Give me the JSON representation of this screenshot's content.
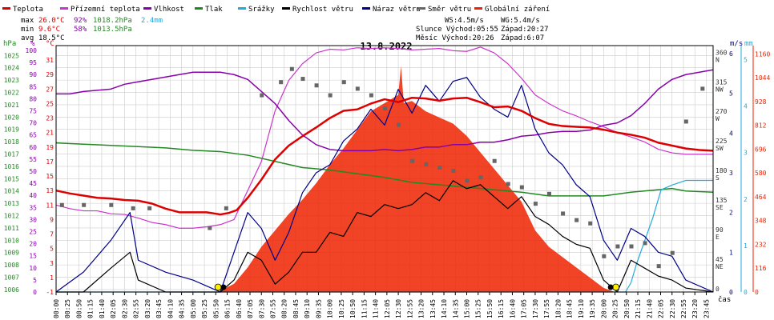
{
  "legend": [
    {
      "label": "Teplota",
      "color": "#dd0000"
    },
    {
      "label": "Přízemní teplota",
      "color": "#cc33cc"
    },
    {
      "label": "Vlhkost",
      "color": "#8800aa"
    },
    {
      "label": "Tlak",
      "color": "#228822"
    },
    {
      "label": "Srážky",
      "color": "#22aadd"
    },
    {
      "label": "Rychlost větru",
      "color": "#000000"
    },
    {
      "label": "Náraz větru",
      "color": "#000088"
    },
    {
      "label": "Směr větru",
      "color": "#666666"
    },
    {
      "label": "Globální záření",
      "color": "#ee2200"
    }
  ],
  "stats": {
    "max_label": "max",
    "min_label": "min",
    "avg_label": "avg",
    "max_temp": "26.0°C",
    "max_hum": "92%",
    "max_press": "1018.2hPa",
    "max_rain": "2.4mm",
    "min_temp": "9.6°C",
    "min_hum": "58%",
    "min_press": "1013.5hPa",
    "avg_temp": "18.5°C"
  },
  "wind_info": {
    "ws": "WS:4.5m/s",
    "wg": "WG:5.4m/s"
  },
  "sun_info": {
    "rise": "Slunce Východ:05:55",
    "set": "Západ:20:27"
  },
  "moon_info": {
    "rise": "Měsíc  Východ:20:26",
    "set": "Západ:6:07"
  },
  "title": "13.8.2022",
  "axes": {
    "hpa_label": "hPa",
    "pct_label": "%",
    "temp_label": "°C",
    "ms_label": "m/s",
    "mm_label": "mm",
    "time_label": "čas",
    "hpa_ticks": [
      "1025",
      "1024",
      "1023",
      "1022",
      "1021",
      "1020",
      "1019",
      "1018",
      "1017",
      "1016",
      "1015",
      "1014",
      "1013",
      "1012",
      "1011",
      "1010",
      "1009",
      "1008",
      "1007",
      "1006"
    ],
    "pct_ticks": [
      "100",
      "95",
      "90",
      "85",
      "80",
      "75",
      "70",
      "65",
      "60",
      "55",
      "50",
      "45",
      "40",
      "35",
      "30",
      "25",
      "20",
      "15",
      "10",
      "5",
      "0"
    ],
    "temp_ticks": [
      "31",
      "29",
      "27",
      "25",
      "23",
      "21",
      "19",
      "17",
      "15",
      "13",
      "11",
      "9",
      "7",
      "5",
      "3",
      "1",
      "-1"
    ],
    "dir_ticks": [
      {
        "deg": "360",
        "dir": "N"
      },
      {
        "deg": "315",
        "dir": "NW"
      },
      {
        "deg": "270",
        "dir": "W"
      },
      {
        "deg": "225",
        "dir": "SW"
      },
      {
        "deg": "180",
        "dir": "S"
      },
      {
        "deg": "135",
        "dir": "SE"
      },
      {
        "deg": "90",
        "dir": "E"
      },
      {
        "deg": "45",
        "dir": "NE"
      },
      {
        "deg": "0",
        "dir": ""
      }
    ],
    "ms_ticks": [
      "6",
      "5",
      "4",
      "3",
      "2",
      "1",
      "0"
    ],
    "mm_ticks": [
      "5",
      "4",
      "3",
      "2",
      "1",
      "0"
    ],
    "rad_ticks": [
      "1160",
      "1044",
      "928",
      "812",
      "696",
      "580",
      "464",
      "348",
      "232",
      "116",
      "0"
    ],
    "time_ticks": [
      "00:00",
      "00:25",
      "00:50",
      "01:15",
      "01:40",
      "02:05",
      "02:30",
      "02:55",
      "03:20",
      "03:45",
      "04:10",
      "04:35",
      "05:00",
      "05:25",
      "05:50",
      "06:15",
      "06:40",
      "07:05",
      "07:30",
      "07:55",
      "08:20",
      "08:45",
      "09:10",
      "09:35",
      "10:00",
      "10:25",
      "10:50",
      "11:15",
      "11:40",
      "12:05",
      "12:30",
      "12:55",
      "13:20",
      "13:45",
      "14:10",
      "14:35",
      "15:00",
      "15:25",
      "15:50",
      "16:15",
      "16:40",
      "17:05",
      "17:30",
      "17:55",
      "18:20",
      "18:45",
      "19:10",
      "19:35",
      "20:00",
      "20:25",
      "20:50",
      "21:15",
      "21:40",
      "22:05",
      "22:30",
      "22:55",
      "23:20",
      "23:45"
    ]
  },
  "colors": {
    "temperature": "#dd0000",
    "ground_temp": "#cc33cc",
    "humidity": "#8800aa",
    "pressure": "#228822",
    "rain": "#22aadd",
    "wind_speed": "#000000",
    "wind_gust": "#000088",
    "wind_dir": "#666666",
    "radiation": "#ee2200",
    "grid": "#cccccc"
  },
  "chart_data": {
    "type": "line",
    "title": "13.8.2022",
    "x_unit": "hours",
    "xlim": [
      0,
      24
    ],
    "series": [
      {
        "name": "Teplota",
        "axis": "°C",
        "ylim": [
          -1,
          33
        ],
        "x": [
          0,
          0.5,
          1,
          1.5,
          2,
          2.5,
          3,
          3.5,
          4,
          4.5,
          5,
          5.5,
          6,
          6.3,
          6.6,
          7,
          7.5,
          8,
          8.5,
          9,
          9.5,
          10,
          10.5,
          11,
          11.5,
          12,
          12.5,
          13,
          13.5,
          14,
          14.5,
          15,
          15.5,
          16,
          16.5,
          17,
          17.5,
          18,
          18.5,
          19,
          19.5,
          20,
          20.5,
          21,
          21.5,
          22,
          22.5,
          23,
          23.5,
          24
        ],
        "y": [
          13,
          12.6,
          12.3,
          12,
          11.9,
          11.7,
          11.6,
          11.2,
          10.5,
          10,
          10,
          10,
          9.7,
          9.9,
          10.3,
          12,
          14.5,
          17.3,
          19.2,
          20.5,
          21.7,
          23,
          24,
          24.2,
          25,
          25.6,
          25.2,
          25.8,
          25.7,
          25.4,
          25.7,
          25.8,
          25.2,
          24.5,
          24.6,
          24,
          23,
          22.2,
          21.9,
          21.8,
          21.7,
          21.4,
          21,
          20.7,
          20.3,
          19.6,
          19.2,
          18.8,
          18.6,
          18.5
        ]
      },
      {
        "name": "Přízemní teplota",
        "axis": "°C",
        "ylim": [
          -1,
          33
        ],
        "x": [
          0,
          0.5,
          1,
          1.5,
          2,
          2.5,
          3,
          3.5,
          4,
          4.5,
          5,
          5.5,
          6,
          6.5,
          7,
          7.5,
          8,
          8.5,
          9,
          9.5,
          10,
          10.5,
          11,
          11.5,
          12,
          12.5,
          13,
          13.5,
          14,
          14.5,
          15,
          15.5,
          16,
          16.5,
          17,
          17.5,
          18,
          18.5,
          19,
          19.5,
          20,
          20.5,
          21,
          21.5,
          22,
          22.5,
          23,
          23.5,
          24
        ],
        "y": [
          11,
          10.5,
          10.2,
          10.2,
          9.8,
          9.7,
          9.2,
          8.6,
          8.3,
          7.8,
          7.8,
          8,
          8.3,
          9,
          13,
          17,
          24,
          28.2,
          30.5,
          32,
          32.5,
          32.4,
          32.7,
          32.6,
          32.7,
          32.6,
          32.4,
          32.5,
          32.6,
          32.3,
          32.2,
          32.8,
          32,
          30.5,
          28.5,
          26.2,
          25,
          24,
          23.3,
          22.5,
          21.8,
          21,
          20.4,
          19.7,
          18.7,
          18.2,
          18,
          18,
          18
        ]
      },
      {
        "name": "Vlhkost",
        "axis": "%",
        "ylim": [
          0,
          102
        ],
        "x": [
          0,
          0.5,
          1,
          1.5,
          2,
          2.5,
          3,
          3.5,
          4,
          4.5,
          5,
          5.5,
          6,
          6.5,
          7,
          7.5,
          8,
          8.5,
          9,
          9.5,
          10,
          10.5,
          11,
          11.5,
          12,
          12.5,
          13,
          13.5,
          14,
          14.5,
          15,
          15.5,
          16,
          16.5,
          17,
          17.5,
          18,
          18.5,
          19,
          19.5,
          20,
          20.5,
          21,
          21.5,
          22,
          22.5,
          23,
          23.5,
          24
        ],
        "y": [
          82,
          82,
          83,
          83.5,
          84,
          86,
          87,
          88,
          89,
          90,
          91,
          91,
          91,
          90,
          88,
          83,
          78,
          71,
          65,
          61,
          59,
          58.5,
          58.5,
          58.5,
          59,
          58.5,
          59,
          60,
          60,
          61,
          61,
          62,
          62,
          63,
          64.5,
          65,
          66,
          66.5,
          66.5,
          67,
          69,
          70,
          73,
          78,
          84,
          88,
          90,
          91,
          92
        ]
      },
      {
        "name": "Tlak",
        "axis": "hPa",
        "ylim": [
          1005.8,
          1025.8
        ],
        "x": [
          0,
          1,
          2,
          3,
          4,
          5,
          6,
          7,
          8,
          9,
          10,
          11,
          12,
          13,
          14,
          15,
          16,
          17,
          18,
          19,
          20,
          21,
          22,
          22.5,
          23,
          24
        ],
        "y": [
          1017.9,
          1017.8,
          1017.7,
          1017.6,
          1017.5,
          1017.3,
          1017.2,
          1016.9,
          1016.4,
          1015.9,
          1015.7,
          1015.4,
          1015.1,
          1014.7,
          1014.5,
          1014.3,
          1014.1,
          1013.9,
          1013.6,
          1013.6,
          1013.6,
          1013.9,
          1014.1,
          1014.2,
          1014.0,
          1013.9
        ]
      },
      {
        "name": "Srážky",
        "axis": "mm",
        "ylim": [
          0,
          5.3
        ],
        "x": [
          0,
          20.8,
          21.0,
          21.2,
          21.5,
          21.8,
          22.1,
          22.5,
          23,
          24
        ],
        "y": [
          0,
          0,
          0.2,
          0.6,
          1.1,
          1.6,
          2.2,
          2.3,
          2.4,
          2.4
        ]
      },
      {
        "name": "Rychlost větru",
        "axis": "m/s",
        "ylim": [
          0,
          6.2
        ],
        "x": [
          0,
          1,
          2,
          2.7,
          3,
          4,
          5,
          6,
          6.5,
          7,
          7.5,
          8,
          8.5,
          9,
          9.5,
          10,
          10.5,
          11,
          11.5,
          12,
          12.5,
          13,
          13.5,
          14,
          14.5,
          15,
          15.5,
          16,
          16.5,
          17,
          17.5,
          18,
          18.5,
          19,
          19.5,
          20,
          20.5,
          21,
          21.5,
          22,
          22.5,
          23,
          24
        ],
        "y": [
          0,
          0,
          0.6,
          1,
          0.3,
          0,
          0,
          0,
          0.3,
          1,
          0.8,
          0.2,
          0.5,
          1,
          1,
          1.5,
          1.4,
          2,
          1.9,
          2.2,
          2.1,
          2.2,
          2.5,
          2.3,
          2.8,
          2.6,
          2.7,
          2.4,
          2.1,
          2.4,
          1.9,
          1.7,
          1.4,
          1.2,
          1.1,
          0.3,
          0,
          0.8,
          0.6,
          0.4,
          0.3,
          0.1,
          0
        ]
      },
      {
        "name": "Náraz větru",
        "axis": "m/s",
        "ylim": [
          0,
          6.2
        ],
        "x": [
          0,
          1,
          2,
          2.7,
          3,
          4,
          5,
          6,
          6.5,
          7,
          7.5,
          8,
          8.5,
          9,
          9.5,
          10,
          10.5,
          11,
          11.5,
          12,
          12.5,
          13,
          13.5,
          14,
          14.5,
          15,
          15.5,
          16,
          16.5,
          17,
          17.5,
          18,
          18.5,
          19,
          19.5,
          20,
          20.5,
          21,
          21.5,
          22,
          22.5,
          23,
          24
        ],
        "y": [
          0,
          0.5,
          1.3,
          2,
          0.8,
          0.5,
          0.3,
          0,
          1,
          2,
          1.6,
          0.8,
          1.5,
          2.5,
          3,
          3.2,
          3.8,
          4.1,
          4.6,
          4.2,
          5.1,
          4.5,
          5.2,
          4.8,
          5.3,
          5.4,
          4.9,
          4.6,
          4.4,
          5.2,
          4.1,
          3.5,
          3.2,
          2.7,
          2.4,
          1.3,
          0.8,
          1.6,
          1.4,
          1,
          0.9,
          0.3,
          0
        ]
      },
      {
        "name": "Směr větru",
        "axis": "°",
        "ylim": [
          0,
          375
        ],
        "type": "scatter",
        "x": [
          0.2,
          1,
          2,
          2.8,
          3.4,
          5.6,
          6.2,
          7.5,
          8.2,
          8.6,
          9,
          9.5,
          10,
          10.5,
          11,
          11.5,
          12,
          12.5,
          13,
          13.5,
          14,
          14.5,
          15,
          15.5,
          16,
          16.5,
          17,
          17.5,
          18,
          18.5,
          19,
          19.5,
          20,
          20.5,
          21,
          21.5,
          22,
          22.5,
          23,
          23.6
        ],
        "y": [
          133,
          133,
          133,
          128,
          128,
          98,
          128,
          300,
          320,
          340,
          325,
          315,
          300,
          320,
          310,
          300,
          280,
          255,
          200,
          195,
          190,
          185,
          170,
          175,
          200,
          165,
          160,
          135,
          150,
          120,
          110,
          105,
          55,
          70,
          70,
          75,
          40,
          60,
          260,
          310
        ]
      },
      {
        "name": "Globální záření",
        "axis": "W/m²",
        "ylim": [
          0,
          1200
        ],
        "type": "area",
        "x": [
          0,
          5.9,
          6.5,
          7,
          7.5,
          8,
          8.5,
          9,
          9.5,
          10,
          10.5,
          11,
          11.5,
          12,
          12.5,
          12.6,
          12.7,
          13,
          13.5,
          14,
          14.5,
          15,
          15.5,
          16,
          16.5,
          17,
          17.5,
          18,
          18.5,
          19,
          19.5,
          20,
          20.4,
          24
        ],
        "y": [
          0,
          0,
          40,
          120,
          220,
          300,
          380,
          450,
          530,
          620,
          700,
          790,
          880,
          920,
          960,
          1100,
          920,
          930,
          880,
          850,
          820,
          760,
          680,
          600,
          520,
          440,
          300,
          220,
          170,
          120,
          70,
          20,
          0,
          0
        ]
      }
    ]
  }
}
